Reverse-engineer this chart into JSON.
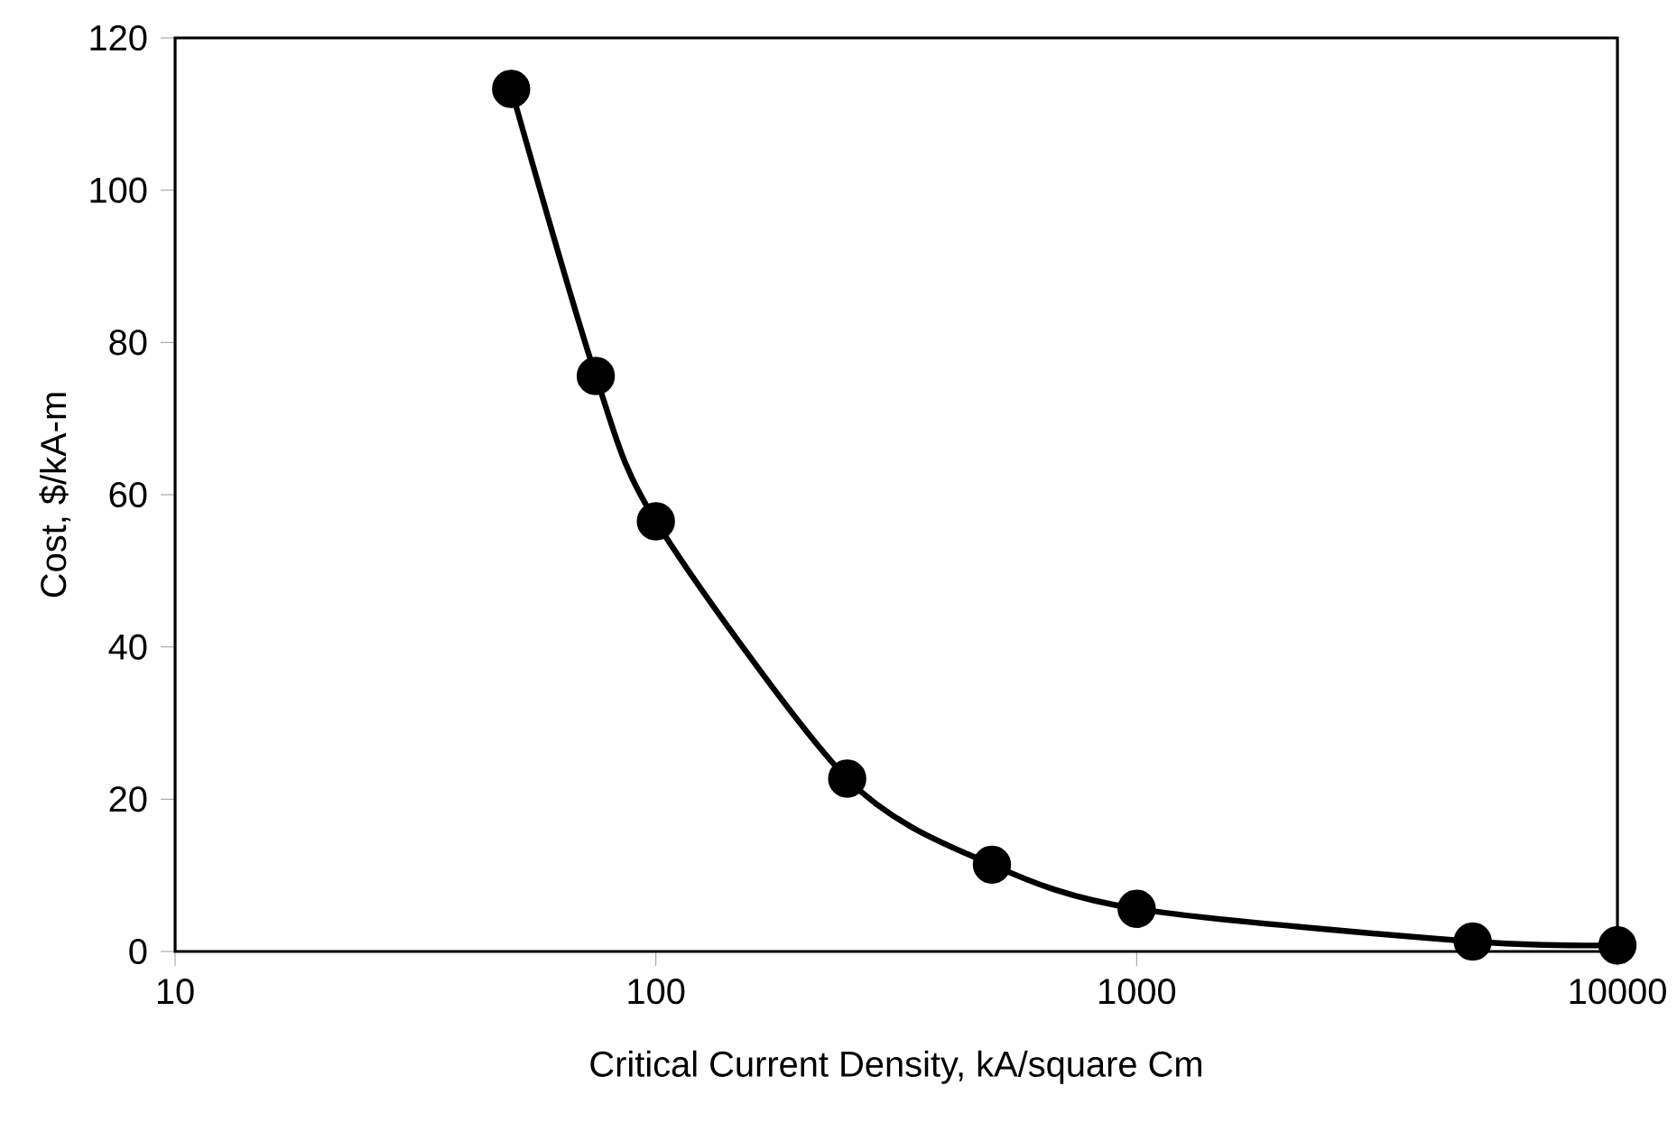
{
  "chart_data": {
    "type": "line",
    "xlabel": "Critical Current Density, kA/square Cm",
    "ylabel": "Cost,  $/kA-m",
    "x": [
      50,
      75,
      100,
      250,
      500,
      1000,
      5000,
      10000
    ],
    "series": [
      {
        "color": "#000000",
        "values": [
          113.3,
          75.6,
          56.5,
          22.7,
          11.4,
          5.6,
          1.3,
          0.8
        ]
      }
    ],
    "xlim": [
      10,
      10000
    ],
    "xticks": [
      10,
      100,
      1000,
      10000
    ],
    "ylim": [
      0,
      120
    ],
    "yticks": [
      0,
      20,
      40,
      60,
      80,
      100,
      120
    ],
    "log": "x",
    "grid": false,
    "marker": "circle",
    "line_style": "solid"
  }
}
